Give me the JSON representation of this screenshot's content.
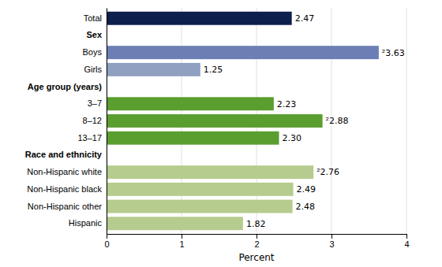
{
  "chart_data": {
    "type": "bar",
    "orientation": "horizontal",
    "xlabel": "Percent",
    "categories": [
      "Total",
      "Sex",
      "Boys",
      "Girls",
      "Age group (years)",
      "3–7",
      "8–12",
      "13–17",
      "Race and ethnicity",
      "Non-Hispanic white",
      "Non-Hispanic black",
      "Non-Hispanic other",
      "Hispanic"
    ],
    "values": [
      2.47,
      null,
      3.63,
      1.25,
      null,
      2.23,
      2.88,
      2.3,
      null,
      2.76,
      2.49,
      2.48,
      1.82
    ],
    "value_labels": [
      "2.47",
      null,
      "²3.63",
      "1.25",
      null,
      "2.23",
      "²2.88",
      "2.30",
      null,
      "²2.76",
      "2.49",
      "2.48",
      "1.82"
    ],
    "colors": [
      "#0d1f4c",
      null,
      "#6b7fb5",
      "#8fa0c0",
      null,
      "#5a9e2f",
      "#5a9e2f",
      "#5a9e2f",
      null,
      "#b5cc8e",
      "#b5cc8e",
      "#b5cc8e",
      "#b5cc8e"
    ],
    "xlim": [
      0,
      4
    ],
    "xticks": [
      0,
      1,
      2,
      3,
      4
    ],
    "grid": true,
    "data_labels": true
  }
}
